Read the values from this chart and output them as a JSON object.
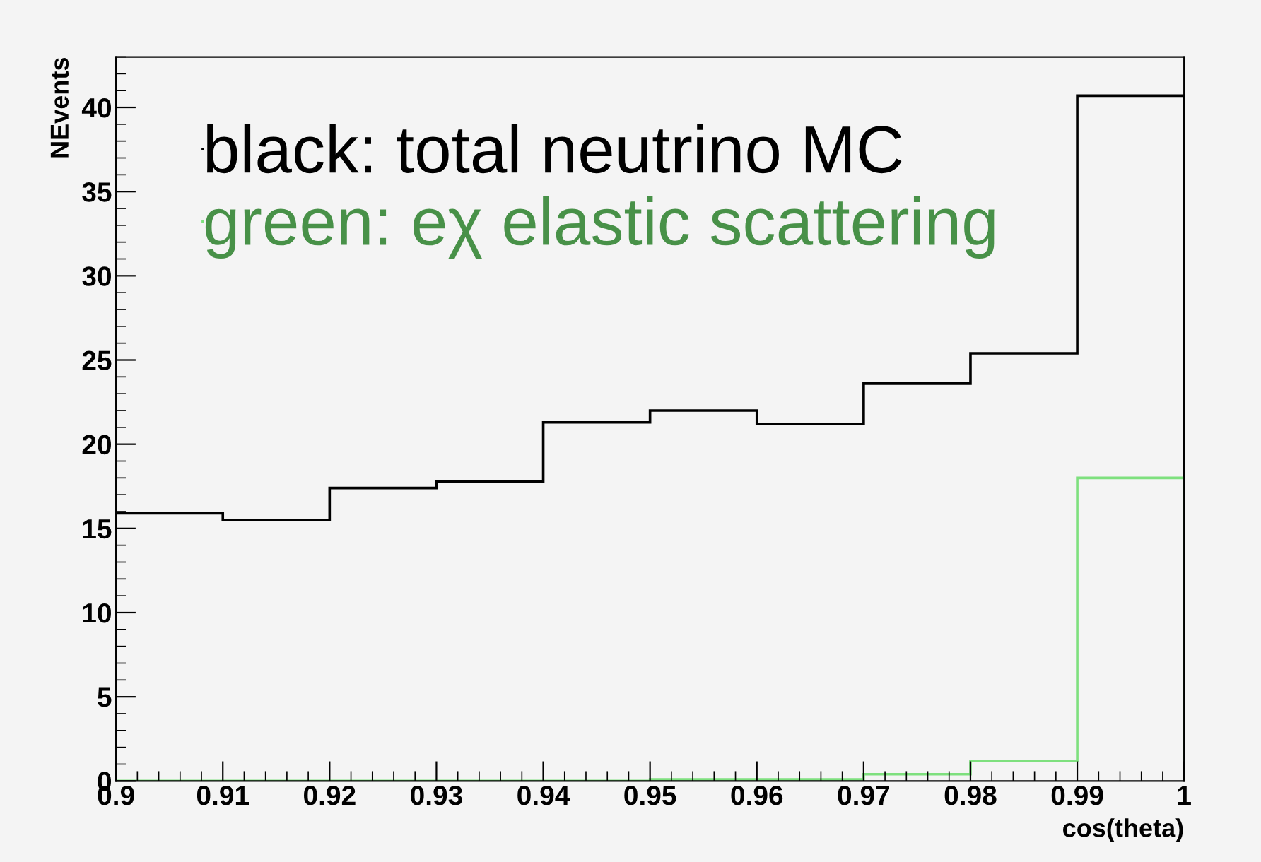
{
  "chart_data": {
    "type": "histogram",
    "xlabel": "cos(theta)",
    "ylabel": "NEvents",
    "bins": [
      0.9,
      0.91,
      0.92,
      0.93,
      0.94,
      0.95,
      0.96,
      0.97,
      0.98,
      0.99,
      1.0
    ],
    "series": [
      {
        "name": "black: total neutrino MC",
        "color": "#000000",
        "values": [
          15.9,
          15.5,
          17.4,
          17.8,
          21.3,
          22.0,
          21.2,
          23.6,
          25.4,
          40.7
        ]
      },
      {
        "name": "green: eχ elastic scattering",
        "color": "#7ee07e",
        "values": [
          0,
          0,
          0,
          0,
          0,
          0.1,
          0.1,
          0.4,
          1.2,
          18.0
        ]
      }
    ],
    "xlim": [
      0.9,
      1.0
    ],
    "ylim": [
      0,
      43
    ],
    "xticks": [
      0.9,
      0.91,
      0.92,
      0.93,
      0.94,
      0.95,
      0.96,
      0.97,
      0.98,
      0.99,
      {
        "value": 1.0,
        "label": "1"
      }
    ],
    "yticks": [
      0,
      5,
      10,
      15,
      20,
      25,
      30,
      35,
      40
    ],
    "grid": false,
    "legend": "top left"
  }
}
